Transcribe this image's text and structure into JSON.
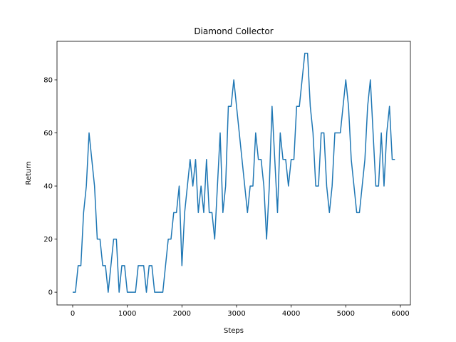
{
  "chart_data": {
    "type": "line",
    "title": "Diamond Collector",
    "x_label": "Steps",
    "y_label": "Return",
    "x": [
      0,
      50,
      100,
      150,
      200,
      250,
      300,
      350,
      400,
      450,
      500,
      550,
      600,
      650,
      700,
      750,
      800,
      850,
      900,
      950,
      1000,
      1050,
      1100,
      1150,
      1200,
      1250,
      1300,
      1350,
      1400,
      1450,
      1500,
      1550,
      1600,
      1650,
      1700,
      1750,
      1800,
      1850,
      1900,
      1950,
      2000,
      2050,
      2100,
      2150,
      2200,
      2250,
      2300,
      2350,
      2400,
      2450,
      2500,
      2550,
      2600,
      2650,
      2700,
      2750,
      2800,
      2850,
      2900,
      2950,
      3000,
      3050,
      3100,
      3150,
      3200,
      3250,
      3300,
      3350,
      3400,
      3450,
      3500,
      3550,
      3600,
      3650,
      3700,
      3750,
      3800,
      3850,
      3900,
      3950,
      4000,
      4050,
      4100,
      4150,
      4200,
      4250,
      4300,
      4350,
      4400,
      4450,
      4500,
      4550,
      4600,
      4650,
      4700,
      4750,
      4800,
      4850,
      4900,
      4950,
      5000,
      5050,
      5100,
      5150,
      5200,
      5250,
      5300,
      5350,
      5400,
      5450,
      5500,
      5550,
      5600,
      5650,
      5700,
      5750,
      5800,
      5850,
      5900
    ],
    "series": [
      {
        "color": "#1f77b4",
        "values": [
          0,
          0,
          10,
          10,
          30,
          40,
          60,
          50,
          40,
          20,
          20,
          10,
          10,
          0,
          10,
          20,
          20,
          0,
          10,
          10,
          0,
          0,
          0,
          0,
          10,
          10,
          10,
          0,
          10,
          10,
          0,
          0,
          0,
          0,
          10,
          20,
          20,
          30,
          30,
          40,
          10,
          30,
          40,
          50,
          40,
          50,
          30,
          40,
          30,
          50,
          30,
          30,
          20,
          40,
          60,
          30,
          40,
          70,
          70,
          80,
          70,
          60,
          50,
          40,
          30,
          40,
          40,
          60,
          50,
          50,
          40,
          20,
          40,
          70,
          50,
          30,
          60,
          50,
          50,
          40,
          50,
          50,
          70,
          70,
          80,
          90,
          90,
          70,
          60,
          40,
          40,
          60,
          60,
          40,
          30,
          40,
          60,
          60,
          60,
          70,
          80,
          70,
          50,
          40,
          30,
          30,
          40,
          50,
          70,
          80,
          60,
          40,
          40,
          60,
          40,
          60,
          70,
          50,
          50
        ]
      }
    ],
    "xlim": [
      -287,
      6183
    ],
    "ylim": [
      -4.8,
      94.5
    ],
    "xticks": [
      0,
      1000,
      2000,
      3000,
      4000,
      5000,
      6000
    ],
    "yticks": [
      0,
      20,
      40,
      60,
      80
    ]
  }
}
